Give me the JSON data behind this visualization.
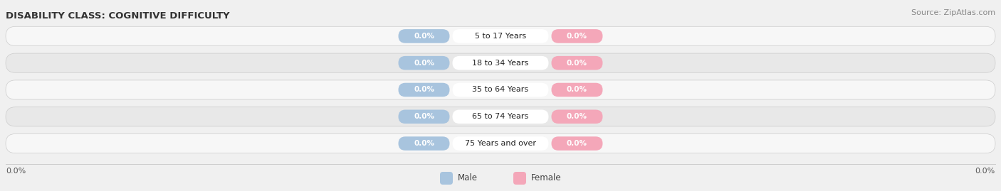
{
  "title": "DISABILITY CLASS: COGNITIVE DIFFICULTY",
  "source": "Source: ZipAtlas.com",
  "categories": [
    "5 to 17 Years",
    "18 to 34 Years",
    "35 to 64 Years",
    "65 to 74 Years",
    "75 Years and over"
  ],
  "male_values": [
    0.0,
    0.0,
    0.0,
    0.0,
    0.0
  ],
  "female_values": [
    0.0,
    0.0,
    0.0,
    0.0,
    0.0
  ],
  "male_color": "#a8c4de",
  "female_color": "#f4a7b9",
  "male_label": "Male",
  "female_label": "Female",
  "bg_color": "#f0f0f0",
  "row_light": "#f7f7f7",
  "row_dark": "#e8e8e8",
  "title_fontsize": 9.5,
  "source_fontsize": 8,
  "x_left_label": "0.0%",
  "x_right_label": "0.0%"
}
